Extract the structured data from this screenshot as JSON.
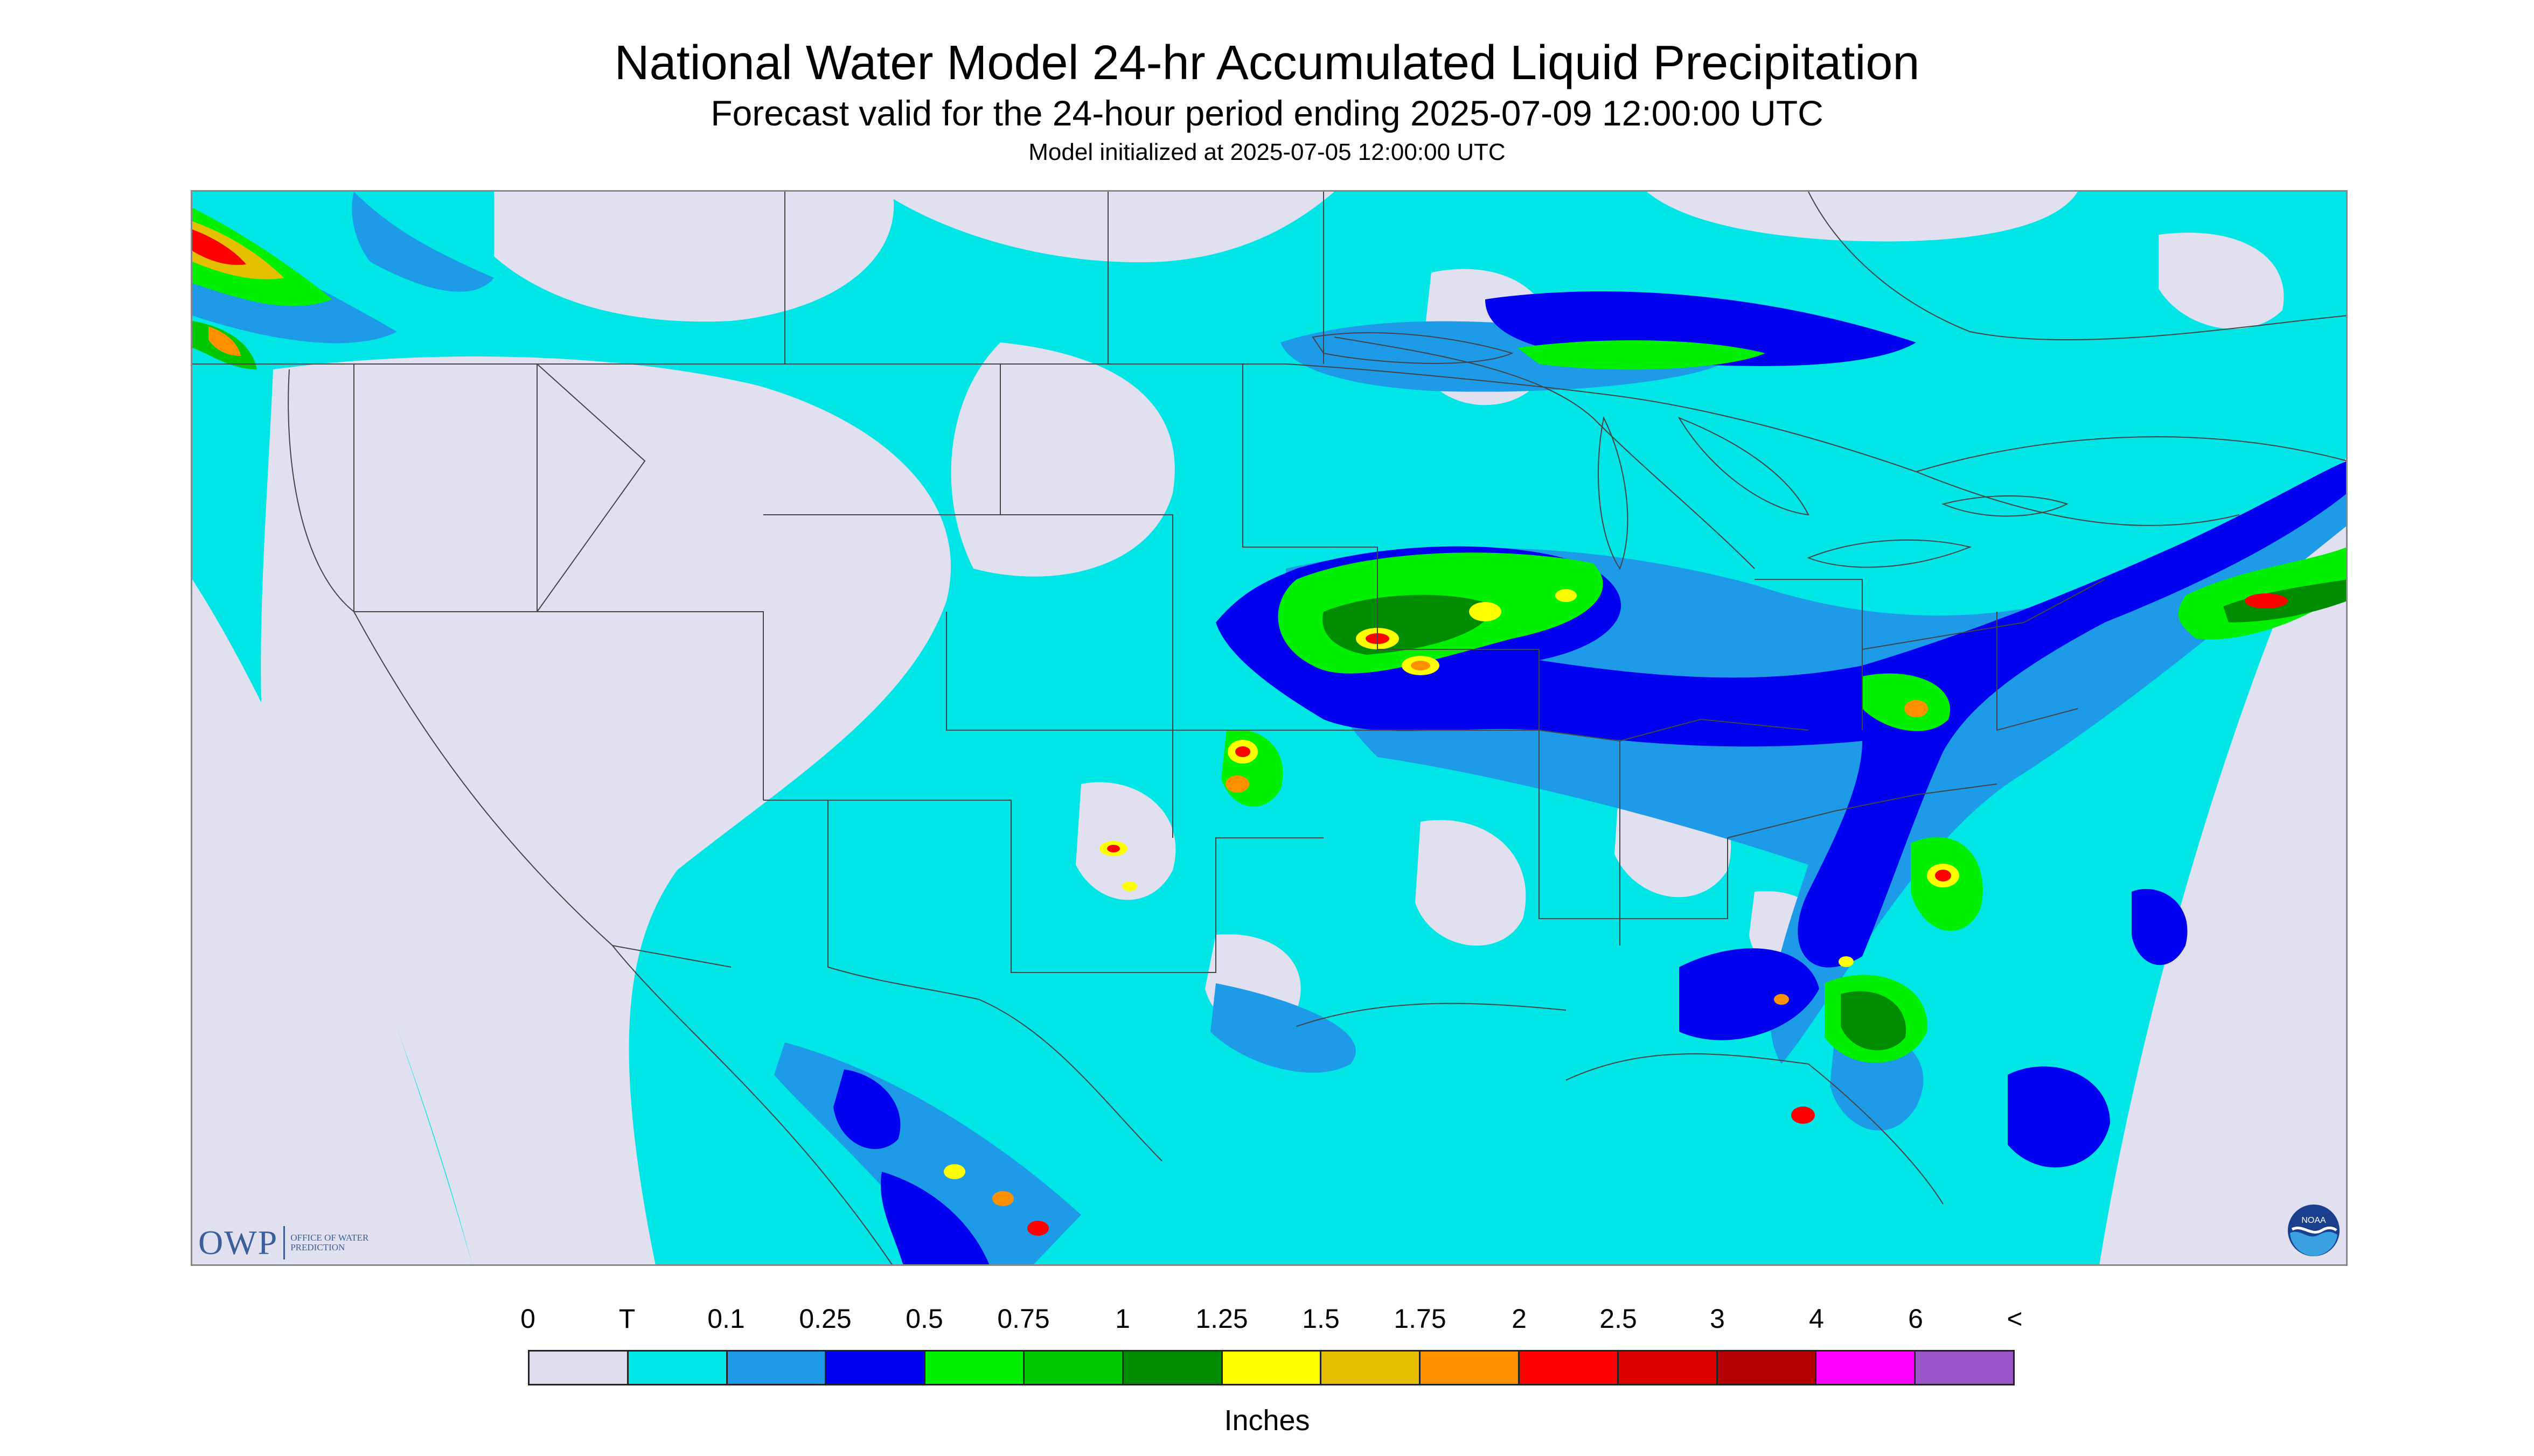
{
  "header": {
    "title": "National Water Model 24-hr Accumulated Liquid Precipitation",
    "subtitle": "Forecast valid for the 24-hour period ending 2025-07-09 12:00:00 UTC",
    "init_note": "Model initialized at 2025-07-05 12:00:00 UTC"
  },
  "logos": {
    "owp": {
      "mark": "OWP",
      "text": "OFFICE OF WATER PREDICTION"
    },
    "noaa": "NOAA"
  },
  "legend": {
    "labels": [
      "0",
      "T",
      "0.1",
      "0.25",
      "0.5",
      "0.75",
      "1",
      "1.25",
      "1.5",
      "1.75",
      "2",
      "2.5",
      "3",
      "4",
      "6",
      "<"
    ],
    "colors": [
      "#dcdcec",
      "#00e5e5",
      "#1e9be8",
      "#0000f0",
      "#00f000",
      "#00c800",
      "#008c00",
      "#ffff00",
      "#e6c000",
      "#ff9000",
      "#ff0000",
      "#dc0000",
      "#b40000",
      "#ff00ff",
      "#9955c9"
    ],
    "units": "Inches"
  },
  "map": {
    "no_data_color": "#dcdcec",
    "boundary_color": "#444444"
  }
}
